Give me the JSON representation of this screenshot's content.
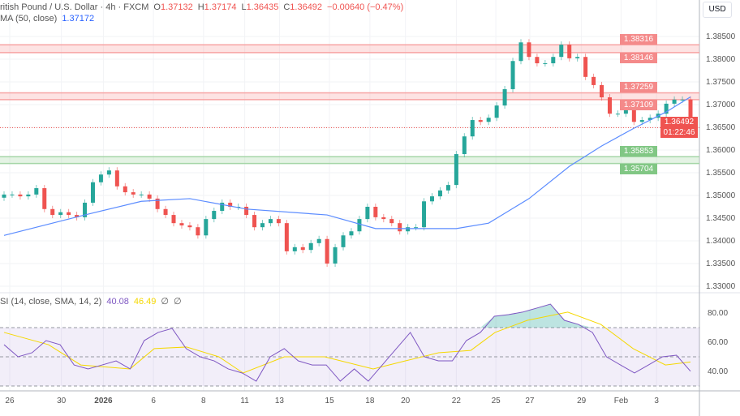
{
  "header": {
    "symbol": "ritish Pound / U.S. Dollar · 4h · FXCM",
    "o_label": "O",
    "o": "1.37132",
    "h_label": "H",
    "h": "1.37174",
    "l_label": "L",
    "l": "1.36435",
    "c_label": "C",
    "c": "1.36492",
    "change": "−0.00640 (−0.47%)"
  },
  "ma_legend": {
    "label": "MA (50, close)",
    "value": "1.37172"
  },
  "rsi_legend": {
    "label": "SI (14, close, SMA, 14, 2)",
    "rsi": "40.08",
    "sma": "46.49",
    "e1": "∅",
    "e2": "∅"
  },
  "currency": "USD",
  "colors": {
    "up": "#26a69a",
    "down": "#ef5350",
    "ma": "#5b8cff",
    "rsi": "#7e57c2",
    "rsi_sma": "#f5d800",
    "resistance": "#f7a3a3",
    "support": "#a5d6a7"
  },
  "price_axis": [
    "1.38500",
    "1.38000",
    "1.37500",
    "1.37000",
    "1.36500",
    "1.36000",
    "1.35500",
    "1.35000",
    "1.34500",
    "1.34000",
    "1.33500",
    "1.33000"
  ],
  "price_ticks": [
    1.385,
    1.38,
    1.375,
    1.37,
    1.365,
    1.36,
    1.355,
    1.35,
    1.345,
    1.34,
    1.335,
    1.33
  ],
  "zones": [
    {
      "type": "resistance",
      "top": "1.38316",
      "bottom": "1.38146"
    },
    {
      "type": "resistance",
      "top": "1.37259",
      "bottom": "1.37109"
    },
    {
      "type": "support",
      "top": "1.35853",
      "bottom": "1.35704"
    }
  ],
  "last_price": {
    "value": "1.36492",
    "countdown": "01:22:46"
  },
  "rsi_axis": [
    "80.00",
    "60.00",
    "40.00"
  ],
  "rsi_ticks": [
    80,
    60,
    40
  ],
  "time_axis": [
    {
      "label": "26",
      "i": 0.7
    },
    {
      "label": "30",
      "i": 7.1
    },
    {
      "label": "2026",
      "i": 12.3
    },
    {
      "label": "6",
      "i": 18.5
    },
    {
      "label": "8",
      "i": 24.7
    },
    {
      "label": "11",
      "i": 29.8
    },
    {
      "label": "13",
      "i": 34.1
    },
    {
      "label": "15",
      "i": 40.3
    },
    {
      "label": "18",
      "i": 45.3
    },
    {
      "label": "20",
      "i": 49.7
    },
    {
      "label": "22",
      "i": 56
    },
    {
      "label": "25",
      "i": 60.9
    },
    {
      "label": "27",
      "i": 65.1
    },
    {
      "label": "29",
      "i": 71.5
    },
    {
      "label": "Feb",
      "i": 76.4
    },
    {
      "label": "3",
      "i": 80.8
    }
  ],
  "chart_data": {
    "type": "candlestick",
    "first_open": 1.3495,
    "closes": [
      1.3502,
      1.3502,
      1.3498,
      1.3502,
      1.3516,
      1.347,
      1.3457,
      1.3463,
      1.3457,
      1.3452,
      1.3484,
      1.3529,
      1.3546,
      1.3555,
      1.352,
      1.3507,
      1.3502,
      1.3502,
      1.3493,
      1.347,
      1.3457,
      1.3439,
      1.3434,
      1.343,
      1.3412,
      1.3448,
      1.3466,
      1.3484,
      1.3475,
      1.3475,
      1.3457,
      1.343,
      1.3439,
      1.3448,
      1.3439,
      1.3377,
      1.3386,
      1.338,
      1.3395,
      1.3404,
      1.335,
      1.3386,
      1.3412,
      1.3421,
      1.3448,
      1.3475,
      1.3452,
      1.3448,
      1.3439,
      1.3421,
      1.343,
      1.343,
      1.3487,
      1.3498,
      1.3511,
      1.3523,
      1.3591,
      1.363,
      1.3666,
      1.3662,
      1.3671,
      1.3698,
      1.3734,
      1.3796,
      1.3837,
      1.3805,
      1.3791,
      1.3791,
      1.3805,
      1.3832,
      1.3802,
      1.3805,
      1.3761,
      1.3743,
      1.3716,
      1.368,
      1.368,
      1.3702,
      1.3662,
      1.3666,
      1.3671,
      1.368,
      1.3702,
      1.3711,
      1.3711,
      1.36492
    ],
    "ma50": [
      [
        0,
        1.3412
      ],
      [
        10,
        1.3457
      ],
      [
        17,
        1.3487
      ],
      [
        23,
        1.3493
      ],
      [
        30,
        1.347
      ],
      [
        40,
        1.3457
      ],
      [
        46,
        1.3427
      ],
      [
        56,
        1.3427
      ],
      [
        60,
        1.3439
      ],
      [
        65,
        1.3493
      ],
      [
        70,
        1.3564
      ],
      [
        74,
        1.3609
      ],
      [
        78,
        1.3648
      ],
      [
        82,
        1.3684
      ],
      [
        85,
        1.3717
      ]
    ],
    "rsi": [
      58.3,
      50,
      52.8,
      61.1,
      58.3,
      44.4,
      41.7,
      44.4,
      47.2,
      41.7,
      61.1,
      66.7,
      69.4,
      55.6,
      50,
      47.2,
      41.7,
      38.9,
      33.3,
      50,
      55.6,
      47.2,
      44.4,
      44.4,
      33.3,
      41.7,
      33.3,
      44.4,
      55.6,
      66.7,
      50,
      47.2,
      47.2,
      61.1,
      66.7,
      77.8,
      78.9,
      80.6,
      83.3,
      86.1,
      75,
      72.2,
      66.7,
      50,
      44.4,
      38.9,
      44.4,
      50,
      51.1,
      40.08
    ],
    "rsi_sma": [
      [
        0,
        66.7
      ],
      [
        5.5,
        58.3
      ],
      [
        9.5,
        44.4
      ],
      [
        15.6,
        41.7
      ],
      [
        18.6,
        55.6
      ],
      [
        22.6,
        56.7
      ],
      [
        26.6,
        50
      ],
      [
        29.6,
        38.9
      ],
      [
        34.7,
        50
      ],
      [
        39.7,
        50
      ],
      [
        45.7,
        41.7
      ],
      [
        49.7,
        47.2
      ],
      [
        53.8,
        52.8
      ],
      [
        57.8,
        54.4
      ],
      [
        60.8,
        66.7
      ],
      [
        64.8,
        75
      ],
      [
        69.8,
        80.6
      ],
      [
        73.9,
        72.2
      ],
      [
        77.9,
        55.6
      ],
      [
        81.9,
        44.4
      ],
      [
        85,
        46.49
      ]
    ],
    "rsi_levels": [
      70,
      50,
      30
    ]
  }
}
